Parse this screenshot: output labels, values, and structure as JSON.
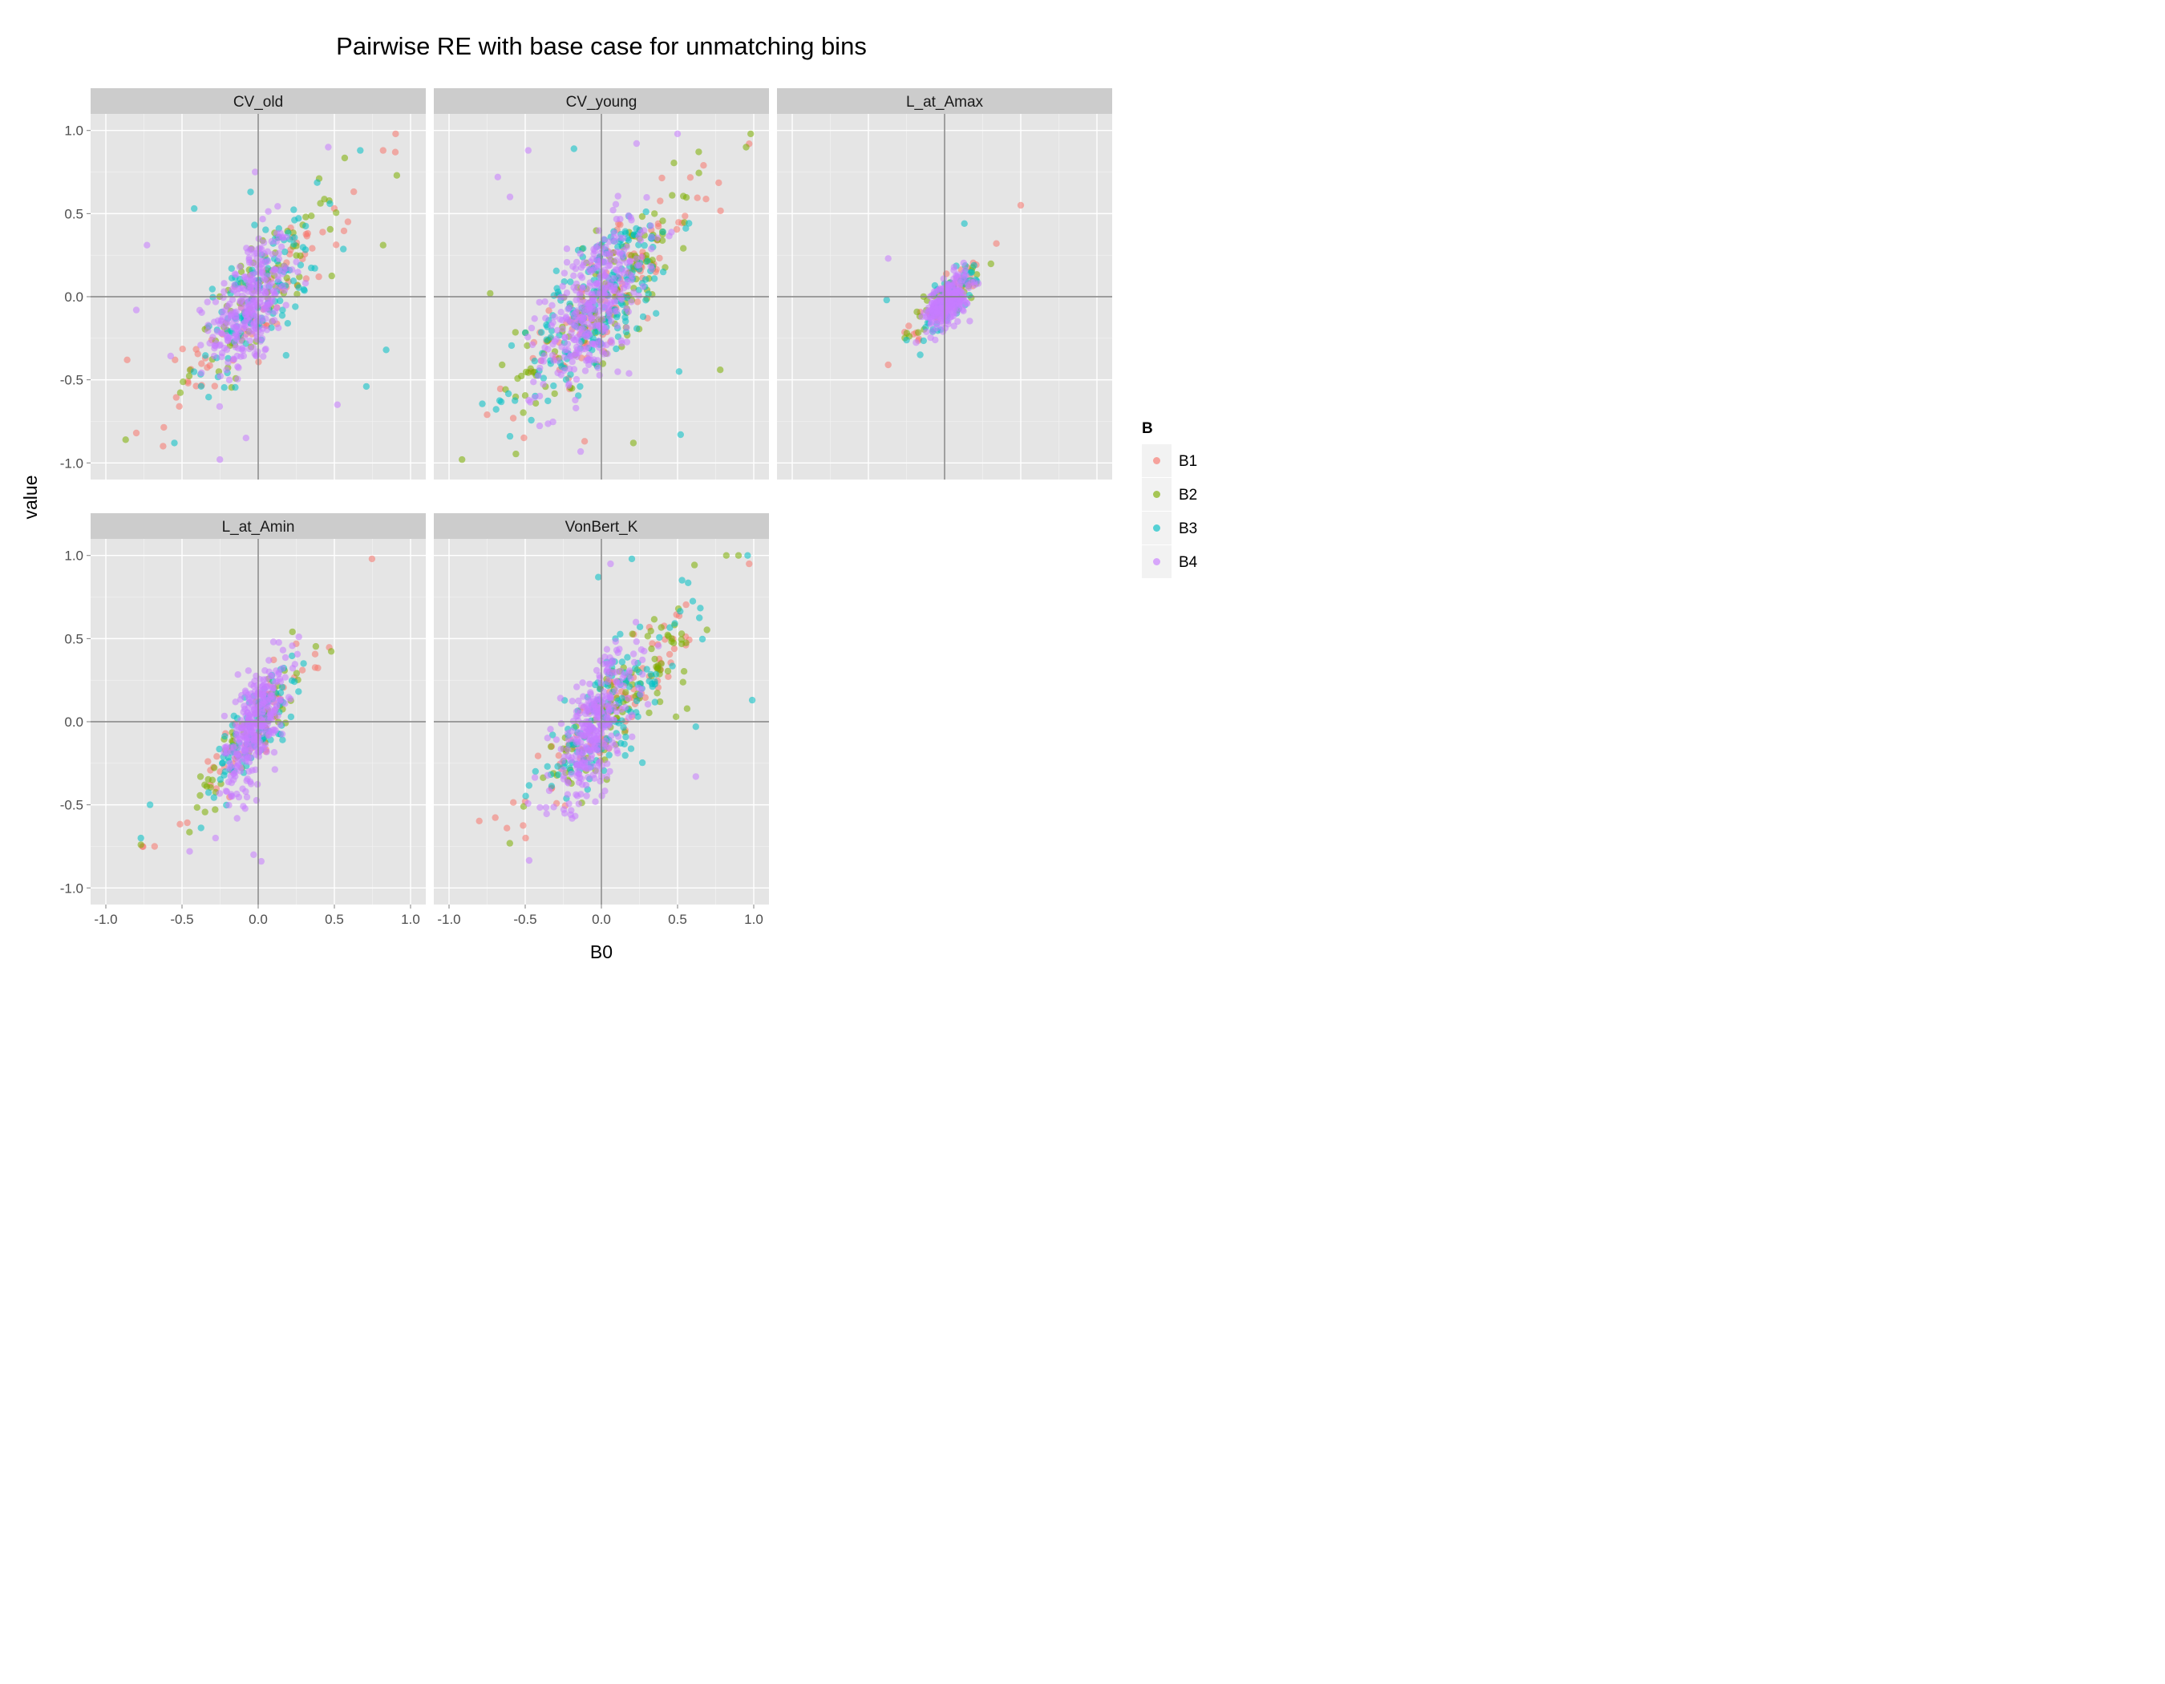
{
  "chart_data": {
    "type": "scatter",
    "title": "Pairwise RE with base case for unmatching bins",
    "xlabel": "B0",
    "ylabel": "value",
    "xlim": [
      -1.0,
      1.0
    ],
    "ylim": [
      -1.0,
      1.0
    ],
    "x_ticks": [
      "-1.0",
      "-0.5",
      "0.0",
      "0.5",
      "1.0"
    ],
    "y_ticks": [
      "1.0",
      "0.5",
      "0.0",
      "-0.5",
      "-1.0"
    ],
    "grid": true,
    "reference_lines": {
      "x": 0,
      "y": 0
    },
    "legend": {
      "title": "B",
      "placement": "right",
      "entries": [
        {
          "name": "B1",
          "color": "#F8766D"
        },
        {
          "name": "B2",
          "color": "#7CAE00"
        },
        {
          "name": "B3",
          "color": "#00BFC4"
        },
        {
          "name": "B4",
          "color": "#C77CFF"
        }
      ]
    },
    "point_alpha": 0.55,
    "panels": [
      {
        "name": "CV_old",
        "clusters": [
          {
            "series": "B4",
            "n": 300,
            "cx": -0.05,
            "cy": -0.05,
            "sx": 0.13,
            "sy": 0.22,
            "r": 0.45
          },
          {
            "series": "B3",
            "n": 120,
            "cx": 0.0,
            "cy": 0.0,
            "sx": 0.2,
            "sy": 0.25,
            "r": 0.7
          },
          {
            "series": "B2",
            "n": 90,
            "cx": 0.05,
            "cy": 0.05,
            "sx": 0.24,
            "sy": 0.27,
            "r": 0.82
          },
          {
            "series": "B1",
            "n": 70,
            "cx": 0.0,
            "cy": -0.05,
            "sx": 0.3,
            "sy": 0.32,
            "r": 0.92
          }
        ],
        "points": [
          {
            "series": "B1",
            "x": 0.82,
            "y": 0.88
          },
          {
            "series": "B1",
            "x": 0.9,
            "y": 0.87
          },
          {
            "series": "B2",
            "x": 0.91,
            "y": 0.73
          },
          {
            "series": "B3",
            "x": 0.67,
            "y": 0.88
          },
          {
            "series": "B4",
            "x": 0.46,
            "y": 0.9
          },
          {
            "series": "B2",
            "x": 0.82,
            "y": 0.31
          },
          {
            "series": "B3",
            "x": 0.84,
            "y": -0.32
          },
          {
            "series": "B3",
            "x": 0.71,
            "y": -0.54
          },
          {
            "series": "B4",
            "x": 0.52,
            "y": -0.65
          },
          {
            "series": "B4",
            "x": -0.73,
            "y": 0.31
          },
          {
            "series": "B3",
            "x": -0.42,
            "y": 0.53
          },
          {
            "series": "B4",
            "x": -0.8,
            "y": -0.08
          },
          {
            "series": "B1",
            "x": -0.86,
            "y": -0.38
          },
          {
            "series": "B2",
            "x": -0.87,
            "y": -0.86
          },
          {
            "series": "B1",
            "x": -0.8,
            "y": -0.82
          },
          {
            "series": "B3",
            "x": -0.55,
            "y": -0.88
          },
          {
            "series": "B4",
            "x": -0.08,
            "y": -0.85
          },
          {
            "series": "B4",
            "x": -0.02,
            "y": 0.75
          },
          {
            "series": "B3",
            "x": -0.05,
            "y": 0.63
          }
        ]
      },
      {
        "name": "CV_young",
        "clusters": [
          {
            "series": "B4",
            "n": 360,
            "cx": -0.05,
            "cy": -0.05,
            "sx": 0.17,
            "sy": 0.26,
            "r": 0.6
          },
          {
            "series": "B3",
            "n": 200,
            "cx": 0.0,
            "cy": -0.02,
            "sx": 0.25,
            "sy": 0.3,
            "r": 0.72
          },
          {
            "series": "B2",
            "n": 140,
            "cx": 0.05,
            "cy": 0.05,
            "sx": 0.3,
            "sy": 0.33,
            "r": 0.83
          },
          {
            "series": "B1",
            "n": 110,
            "cx": 0.05,
            "cy": 0.02,
            "sx": 0.32,
            "sy": 0.33,
            "r": 0.9
          }
        ],
        "points": [
          {
            "series": "B1",
            "x": 0.97,
            "y": 0.92
          },
          {
            "series": "B2",
            "x": 0.95,
            "y": 0.9
          },
          {
            "series": "B4",
            "x": 0.5,
            "y": 0.98
          },
          {
            "series": "B3",
            "x": -0.18,
            "y": 0.89
          },
          {
            "series": "B4",
            "x": -0.48,
            "y": 0.88
          },
          {
            "series": "B4",
            "x": -0.68,
            "y": 0.72
          },
          {
            "series": "B4",
            "x": -0.6,
            "y": 0.6
          },
          {
            "series": "B2",
            "x": -0.73,
            "y": 0.02
          },
          {
            "series": "B1",
            "x": -0.75,
            "y": -0.71
          },
          {
            "series": "B3",
            "x": -0.6,
            "y": -0.84
          },
          {
            "series": "B1",
            "x": -0.11,
            "y": -0.87
          },
          {
            "series": "B2",
            "x": 0.21,
            "y": -0.88
          },
          {
            "series": "B3",
            "x": 0.52,
            "y": -0.83
          },
          {
            "series": "B2",
            "x": 0.78,
            "y": -0.44
          },
          {
            "series": "B3",
            "x": 0.51,
            "y": -0.45
          }
        ]
      },
      {
        "name": "L_at_Amax",
        "clusters": [
          {
            "series": "B4",
            "n": 260,
            "cx": 0.02,
            "cy": -0.03,
            "sx": 0.07,
            "sy": 0.08,
            "r": 0.5
          },
          {
            "series": "B3",
            "n": 70,
            "cx": 0.02,
            "cy": -0.02,
            "sx": 0.09,
            "sy": 0.1,
            "r": 0.75
          },
          {
            "series": "B2",
            "n": 50,
            "cx": 0.0,
            "cy": -0.02,
            "sx": 0.12,
            "sy": 0.12,
            "r": 0.88
          },
          {
            "series": "B1",
            "n": 40,
            "cx": 0.0,
            "cy": -0.02,
            "sx": 0.13,
            "sy": 0.13,
            "r": 0.92
          }
        ],
        "points": [
          {
            "series": "B1",
            "x": 0.5,
            "y": 0.55
          },
          {
            "series": "B1",
            "x": 0.34,
            "y": 0.32
          },
          {
            "series": "B4",
            "x": -0.37,
            "y": 0.23
          },
          {
            "series": "B1",
            "x": -0.37,
            "y": -0.41
          },
          {
            "series": "B3",
            "x": -0.38,
            "y": -0.02
          },
          {
            "series": "B3",
            "x": -0.16,
            "y": -0.35
          },
          {
            "series": "B3",
            "x": 0.13,
            "y": 0.44
          }
        ]
      },
      {
        "name": "L_at_Amin",
        "clusters": [
          {
            "series": "B4",
            "n": 320,
            "cx": -0.02,
            "cy": -0.02,
            "sx": 0.1,
            "sy": 0.2,
            "r": 0.6
          },
          {
            "series": "B3",
            "n": 100,
            "cx": 0.0,
            "cy": 0.0,
            "sx": 0.14,
            "sy": 0.2,
            "r": 0.82
          },
          {
            "series": "B2",
            "n": 70,
            "cx": -0.04,
            "cy": -0.05,
            "sx": 0.2,
            "sy": 0.24,
            "r": 0.9
          },
          {
            "series": "B1",
            "n": 50,
            "cx": -0.05,
            "cy": -0.06,
            "sx": 0.22,
            "sy": 0.25,
            "r": 0.92
          }
        ],
        "points": [
          {
            "series": "B1",
            "x": -0.76,
            "y": -0.75
          },
          {
            "series": "B3",
            "x": -0.77,
            "y": -0.7
          },
          {
            "series": "B2",
            "x": -0.77,
            "y": -0.74
          },
          {
            "series": "B1",
            "x": -0.68,
            "y": -0.75
          },
          {
            "series": "B3",
            "x": -0.71,
            "y": -0.5
          },
          {
            "series": "B4",
            "x": -0.45,
            "y": -0.78
          },
          {
            "series": "B4",
            "x": -0.28,
            "y": -0.7
          },
          {
            "series": "B4",
            "x": 0.02,
            "y": -0.84
          },
          {
            "series": "B4",
            "x": -0.03,
            "y": -0.8
          },
          {
            "series": "B4",
            "x": 0.1,
            "y": 0.48
          },
          {
            "series": "B1",
            "x": 0.29,
            "y": 0.31
          }
        ]
      },
      {
        "name": "VonBert_K",
        "clusters": [
          {
            "series": "B4",
            "n": 320,
            "cx": -0.05,
            "cy": -0.05,
            "sx": 0.14,
            "sy": 0.24,
            "r": 0.65
          },
          {
            "series": "B3",
            "n": 140,
            "cx": 0.05,
            "cy": 0.05,
            "sx": 0.25,
            "sy": 0.28,
            "r": 0.82
          },
          {
            "series": "B2",
            "n": 110,
            "cx": 0.1,
            "cy": 0.08,
            "sx": 0.28,
            "sy": 0.3,
            "r": 0.9
          },
          {
            "series": "B1",
            "n": 90,
            "cx": 0.1,
            "cy": 0.08,
            "sx": 0.3,
            "sy": 0.31,
            "r": 0.93
          }
        ],
        "points": [
          {
            "series": "B2",
            "x": 0.82,
            "y": 1.0
          },
          {
            "series": "B3",
            "x": 0.96,
            "y": 1.0
          },
          {
            "series": "B2",
            "x": 0.9,
            "y": 1.0
          },
          {
            "series": "B1",
            "x": 0.97,
            "y": 0.95
          },
          {
            "series": "B3",
            "x": 0.2,
            "y": 0.98
          },
          {
            "series": "B4",
            "x": 0.06,
            "y": 0.95
          },
          {
            "series": "B3",
            "x": -0.02,
            "y": 0.87
          },
          {
            "series": "B3",
            "x": 0.99,
            "y": 0.13
          },
          {
            "series": "B3",
            "x": 0.62,
            "y": -0.03
          },
          {
            "series": "B4",
            "x": 0.62,
            "y": -0.33
          },
          {
            "series": "B1",
            "x": -0.62,
            "y": -0.64
          },
          {
            "series": "B1",
            "x": -0.5,
            "y": -0.48
          },
          {
            "series": "B2",
            "x": 0.49,
            "y": 0.03
          }
        ]
      }
    ]
  }
}
